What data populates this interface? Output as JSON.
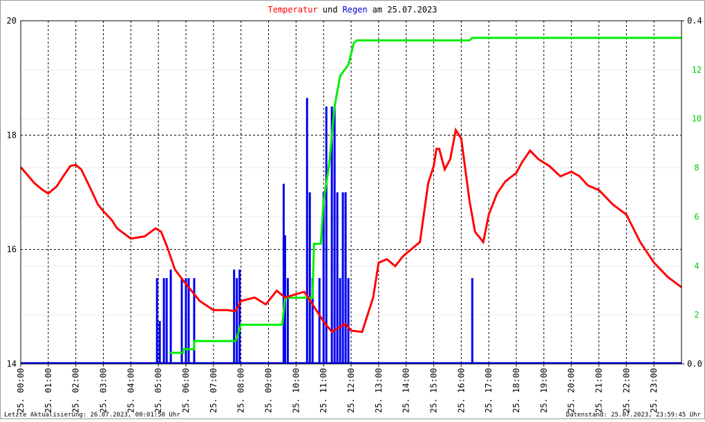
{
  "chart_data": {
    "type": "line",
    "title": [
      {
        "text": "Temperatur",
        "color": "#ff0000"
      },
      {
        "text": "und",
        "color": "#000000"
      },
      {
        "text": "Regen",
        "color": "#0000cc"
      },
      {
        "text": "am 25.07.2023",
        "color": "#000000"
      }
    ],
    "xlim": [
      0,
      24
    ],
    "xticks": [
      {
        "value": 0,
        "label": "25. 00:00"
      },
      {
        "value": 1,
        "label": "25. 01:00"
      },
      {
        "value": 2,
        "label": "25. 02:00"
      },
      {
        "value": 3,
        "label": "25. 03:00"
      },
      {
        "value": 4,
        "label": "25. 04:00"
      },
      {
        "value": 5,
        "label": "25. 05:00"
      },
      {
        "value": 6,
        "label": "25. 06:00"
      },
      {
        "value": 7,
        "label": "25. 07:00"
      },
      {
        "value": 8,
        "label": "25. 08:00"
      },
      {
        "value": 9,
        "label": "25. 09:00"
      },
      {
        "value": 10,
        "label": "25. 10:00"
      },
      {
        "value": 11,
        "label": "25. 11:00"
      },
      {
        "value": 12,
        "label": "25. 12:00"
      },
      {
        "value": 13,
        "label": "25. 13:00"
      },
      {
        "value": 14,
        "label": "25. 14:00"
      },
      {
        "value": 15,
        "label": "25. 15:00"
      },
      {
        "value": 16,
        "label": "25. 16:00"
      },
      {
        "value": 17,
        "label": "25. 17:00"
      },
      {
        "value": 18,
        "label": "25. 18:00"
      },
      {
        "value": 19,
        "label": "25. 19:00"
      },
      {
        "value": 20,
        "label": "25. 20:00"
      },
      {
        "value": 21,
        "label": "25. 21:00"
      },
      {
        "value": 22,
        "label": "25. 22:00"
      },
      {
        "value": 23,
        "label": "25. 23:00"
      }
    ],
    "ylim": [
      14,
      20
    ],
    "yticks": [
      14,
      16,
      18,
      20
    ],
    "y2lim": [
      0,
      0.4
    ],
    "y2ticks": [
      {
        "value": 0,
        "label": "0.0"
      },
      {
        "value": 0.4,
        "label": "0.4"
      }
    ],
    "y3lim": [
      0,
      14
    ],
    "y3ticks": [
      2,
      4,
      6,
      8,
      10,
      12
    ],
    "y3color": "#00cc00",
    "grid": true,
    "series": [
      {
        "color": "#ff0000",
        "style": "line",
        "x": [
          0,
          0.5,
          0.8,
          1.0,
          1.3,
          1.5,
          1.8,
          2.0,
          2.2,
          2.5,
          2.8,
          3.0,
          3.3,
          3.5,
          4.0,
          4.5,
          4.9,
          5.1,
          5.3,
          5.6,
          5.9,
          6.2,
          6.5,
          7.0,
          7.5,
          7.8,
          8.0,
          8.5,
          8.9,
          9.3,
          9.6,
          10.0,
          10.3,
          10.6,
          11.0,
          11.3,
          11.5,
          11.8,
          12.0,
          12.4,
          12.8,
          13.0,
          13.3,
          13.6,
          13.9,
          14.2,
          14.5,
          14.8,
          15.0,
          15.1,
          15.2,
          15.4,
          15.6,
          15.8,
          16.0,
          16.3,
          16.5,
          16.8,
          17.0,
          17.3,
          17.6,
          18.0,
          18.2,
          18.5,
          18.8,
          19.2,
          19.6,
          20.0,
          20.3,
          20.6,
          21.0,
          21.5,
          22.0,
          22.5,
          23.0,
          23.5,
          24.0
        ],
        "values": [
          17.44,
          17.16,
          17.04,
          16.98,
          17.1,
          17.25,
          17.46,
          17.48,
          17.4,
          17.1,
          16.79,
          16.67,
          16.52,
          16.37,
          16.19,
          16.23,
          16.37,
          16.31,
          16.07,
          15.65,
          15.46,
          15.28,
          15.1,
          14.94,
          14.94,
          14.92,
          15.1,
          15.16,
          15.04,
          15.28,
          15.16,
          15.22,
          15.26,
          15.04,
          14.74,
          14.56,
          14.62,
          14.7,
          14.58,
          14.56,
          15.16,
          15.77,
          15.83,
          15.71,
          15.89,
          16.01,
          16.13,
          17.16,
          17.46,
          17.76,
          17.76,
          17.4,
          17.58,
          18.09,
          17.94,
          16.85,
          16.31,
          16.13,
          16.61,
          16.98,
          17.19,
          17.34,
          17.52,
          17.73,
          17.58,
          17.46,
          17.28,
          17.36,
          17.28,
          17.12,
          17.04,
          16.79,
          16.61,
          16.13,
          15.77,
          15.52,
          15.34
        ]
      },
      {
        "color": "#0000ee",
        "style": "bars",
        "axis": "y2",
        "x": [
          4.95,
          5.05,
          5.2,
          5.3,
          5.45,
          5.85,
          6.0,
          6.1,
          6.3,
          7.75,
          7.85,
          7.95,
          9.55,
          9.6,
          9.7,
          10.4,
          10.5,
          10.6,
          10.85,
          11.0,
          11.1,
          11.3,
          11.4,
          11.5,
          11.6,
          11.7,
          11.8,
          11.9,
          16.4
        ],
        "values": [
          0.1,
          0.05,
          0.1,
          0.1,
          0.11,
          0.1,
          0.1,
          0.1,
          0.1,
          0.11,
          0.1,
          0.11,
          0.21,
          0.15,
          0.1,
          0.31,
          0.2,
          0.1,
          0.1,
          0.2,
          0.3,
          0.3,
          0.3,
          0.2,
          0.1,
          0.2,
          0.2,
          0.1,
          0.1
        ]
      },
      {
        "color": "#00ee00",
        "style": "line",
        "axis": "y3",
        "x": [
          5.4,
          5.9,
          5.9,
          6.3,
          6.3,
          7.8,
          8.0,
          9.5,
          9.6,
          10.6,
          10.65,
          10.9,
          11.0,
          11.2,
          11.4,
          11.6,
          11.9,
          12.1,
          12.2,
          16.3,
          16.4,
          24
        ],
        "values": [
          0.45,
          0.45,
          0.6,
          0.6,
          0.93,
          0.93,
          1.6,
          1.6,
          2.7,
          2.7,
          4.9,
          4.9,
          6.65,
          8.1,
          10.5,
          11.75,
          12.2,
          13.1,
          13.2,
          13.2,
          13.3,
          13.3
        ]
      }
    ]
  },
  "footer": {
    "left": "Letzte Aktualisierung: 26.07.2023, 00:01:50 Uhr",
    "right": "Datenstand: 25.07.2023, 23:59:45 Uhr"
  }
}
